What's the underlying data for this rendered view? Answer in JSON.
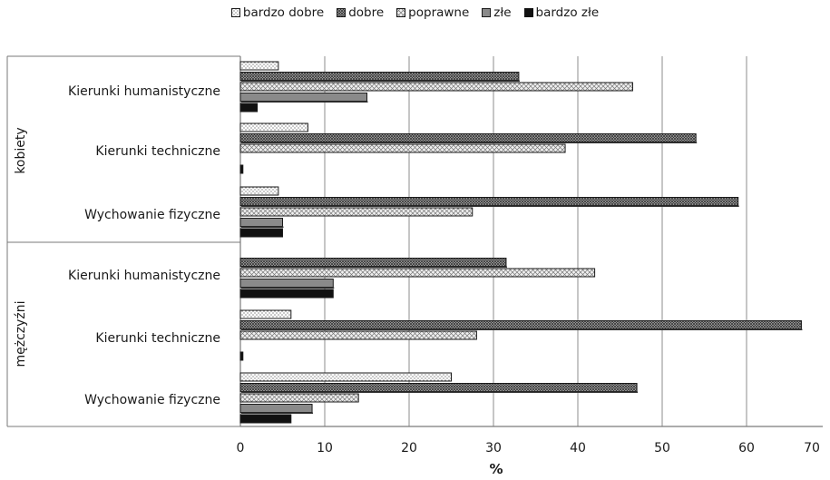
{
  "chart_data": {
    "type": "bar",
    "orientation": "horizontal",
    "title": "",
    "xlabel": "%",
    "ylabel": "",
    "xlim": [
      0,
      70
    ],
    "xticks": [
      "0",
      "10",
      "20",
      "30",
      "40",
      "50",
      "60",
      "70"
    ],
    "grid": true,
    "legend_position": "top",
    "groups": [
      {
        "name": "kobiety",
        "categories": [
          "Kierunki humanistyczne",
          "Kierunki techniczne",
          "Wychowanie fizyczne"
        ]
      },
      {
        "name": "mężczyźni",
        "categories": [
          "Kierunki humanistyczne",
          "Kierunki techniczne",
          "Wychowanie fizyczne"
        ]
      }
    ],
    "series": [
      {
        "name": "bardzo dobre",
        "pattern": "dots",
        "values": [
          4.5,
          8,
          4.5,
          0,
          6,
          25
        ]
      },
      {
        "name": "dobre",
        "pattern": "dense-crosshatch",
        "values": [
          33,
          54,
          59,
          31.5,
          66.5,
          47
        ]
      },
      {
        "name": "poprawne",
        "pattern": "light-crosshatch",
        "values": [
          46.5,
          38.5,
          27.5,
          42,
          28,
          14
        ]
      },
      {
        "name": "złe",
        "pattern": "gray",
        "values": [
          15,
          0,
          5,
          11,
          0,
          8.5
        ]
      },
      {
        "name": "bardzo złe",
        "pattern": "black",
        "values": [
          2,
          0.3,
          5,
          11,
          0.3,
          6
        ]
      }
    ]
  }
}
